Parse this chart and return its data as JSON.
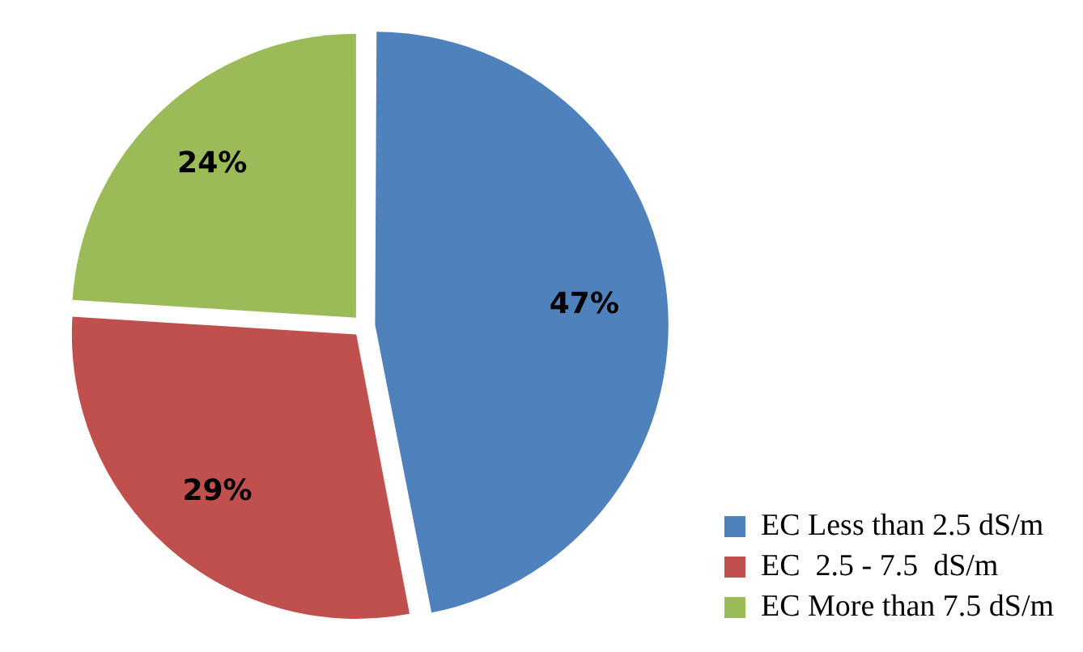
{
  "chart_data": {
    "type": "pie",
    "categories": [
      "EC Less than 2.5 dS/m",
      "EC  2.5 - 7.5  dS/m",
      "EC More than 7.5 dS/m"
    ],
    "values": [
      47,
      29,
      24
    ],
    "colors": [
      "#4f81bd",
      "#c0504d",
      "#9bbb59"
    ],
    "value_labels": [
      "47%",
      "29%",
      "24%"
    ],
    "legend": "bottom right"
  }
}
